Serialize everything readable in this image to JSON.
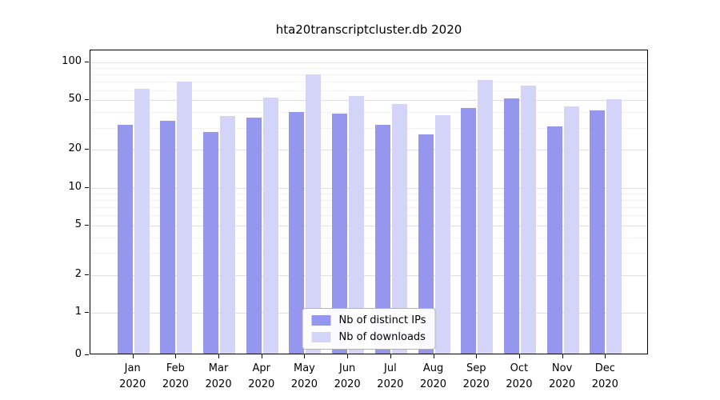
{
  "title": "hta20transcriptcluster.db 2020",
  "chart_data": {
    "type": "bar",
    "title": "hta20transcriptcluster.db 2020",
    "categories": [
      "Jan",
      "Feb",
      "Mar",
      "Apr",
      "May",
      "Jun",
      "Jul",
      "Aug",
      "Sep",
      "Oct",
      "Nov",
      "Dec"
    ],
    "year": "2020",
    "series": [
      {
        "name": "Nb of distinct IPs",
        "color": "#9597ee",
        "values": [
          31,
          33,
          27,
          35,
          39,
          38,
          31,
          26,
          42,
          50,
          30,
          40
        ]
      },
      {
        "name": "Nb of downloads",
        "color": "#d3d4f8",
        "values": [
          60,
          68,
          36,
          51,
          78,
          52,
          45,
          37,
          70,
          63,
          43,
          49
        ]
      }
    ],
    "yscale": "symlog",
    "yticks": [
      0,
      1,
      2,
      5,
      10,
      20,
      50,
      100
    ],
    "yminorticks": [
      3,
      4,
      6,
      7,
      8,
      9,
      30,
      40,
      60,
      70,
      80,
      90
    ],
    "ylim": [
      0,
      110
    ],
    "xlabel": "",
    "ylabel": "",
    "grid": true,
    "legend_position": "lower center"
  }
}
